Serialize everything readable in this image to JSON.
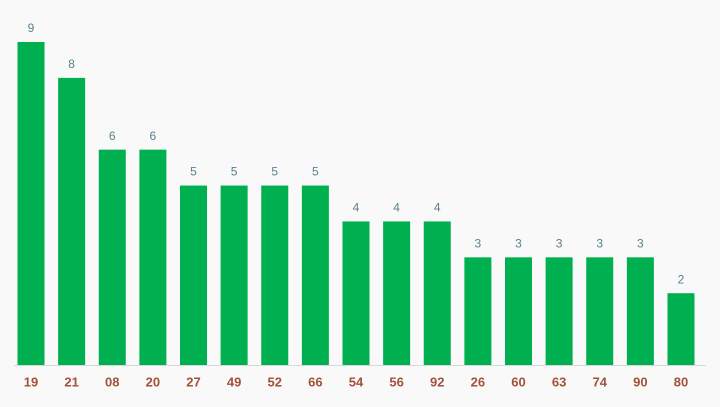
{
  "chart_data": {
    "type": "bar",
    "categories": [
      "19",
      "21",
      "08",
      "20",
      "27",
      "49",
      "52",
      "66",
      "54",
      "56",
      "92",
      "26",
      "60",
      "63",
      "74",
      "90",
      "80"
    ],
    "values": [
      9,
      8,
      6,
      6,
      5,
      5,
      5,
      5,
      4,
      4,
      4,
      3,
      3,
      3,
      3,
      3,
      2
    ],
    "color": "#00b050"
  }
}
